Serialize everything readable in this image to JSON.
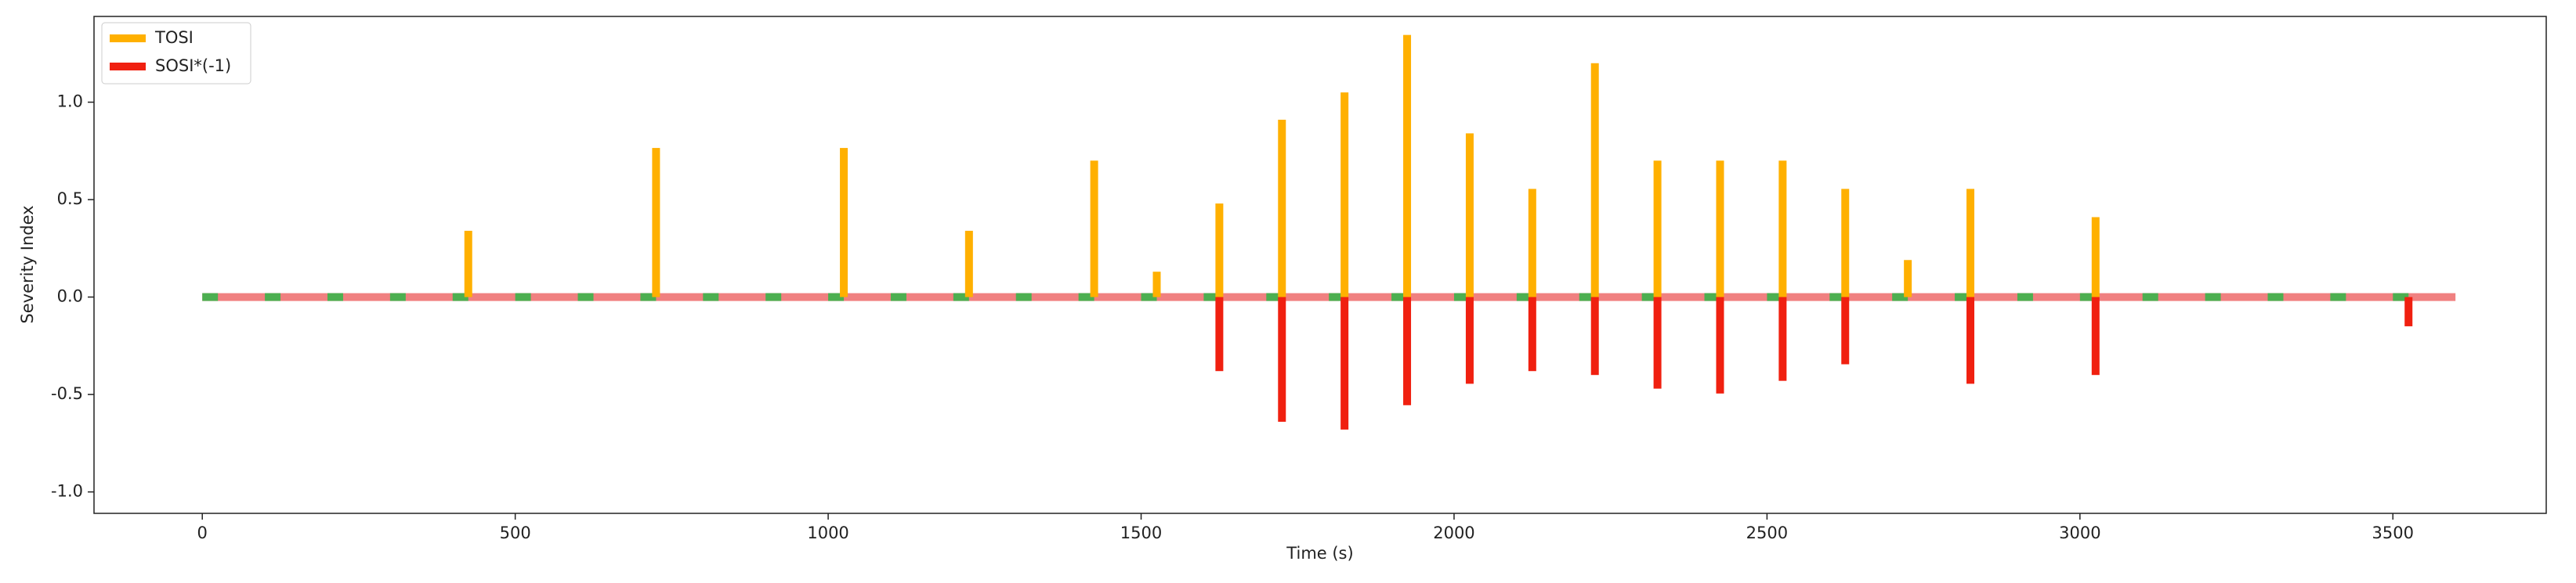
{
  "chart_data": {
    "type": "bar",
    "xlabel": "Time (s)",
    "ylabel": "Severity Index",
    "xlim": [
      -173,
      3745
    ],
    "ylim": [
      -1.11,
      1.44
    ],
    "xticks": [
      0,
      500,
      1000,
      1500,
      2000,
      2500,
      3000,
      3500
    ],
    "yticks": [
      {
        "value": -1,
        "label": "-1.0"
      },
      -0.5,
      {
        "value": 0,
        "label": "0.0"
      },
      0.5,
      {
        "value": 1,
        "label": "1.0"
      }
    ],
    "legend": "upper left",
    "baseline": {
      "x": [
        0,
        3600
      ],
      "color": "#f08080"
    },
    "green_marks": {
      "x": [
        0,
        100,
        200,
        300,
        400,
        500,
        600,
        700,
        800,
        900,
        1000,
        1100,
        1200,
        1300,
        1400,
        1500,
        1600,
        1700,
        1800,
        1900,
        2000,
        2100,
        2200,
        2300,
        2400,
        2500,
        2600,
        2700,
        2800,
        2900,
        3000,
        3100,
        3200,
        3300,
        3400,
        3500
      ],
      "width": 25,
      "color": "#4caf50"
    },
    "series": [
      {
        "name": "TOSI",
        "color": "#ffb000",
        "x": [
          425,
          725,
          1025,
          1225,
          1425,
          1525,
          1625,
          1725,
          1825,
          1925,
          2025,
          2125,
          2225,
          2325,
          2425,
          2525,
          2625,
          2725,
          2825,
          3025
        ],
        "values": [
          0.34,
          0.765,
          0.765,
          0.34,
          0.7,
          0.13,
          0.48,
          0.91,
          1.05,
          1.345,
          0.84,
          0.555,
          1.2,
          0.7,
          0.7,
          0.7,
          0.555,
          0.19,
          0.555,
          0.41
        ]
      },
      {
        "name": "SOSI*(-1)",
        "color": "#f02010",
        "x": [
          1625,
          1725,
          1825,
          1925,
          2025,
          2125,
          2225,
          2325,
          2425,
          2525,
          2625,
          2825,
          3025,
          3525
        ],
        "values": [
          -0.38,
          -0.64,
          -0.68,
          -0.555,
          -0.445,
          -0.38,
          -0.4,
          -0.47,
          -0.495,
          -0.43,
          -0.345,
          -0.445,
          -0.4,
          -0.15
        ]
      }
    ]
  }
}
